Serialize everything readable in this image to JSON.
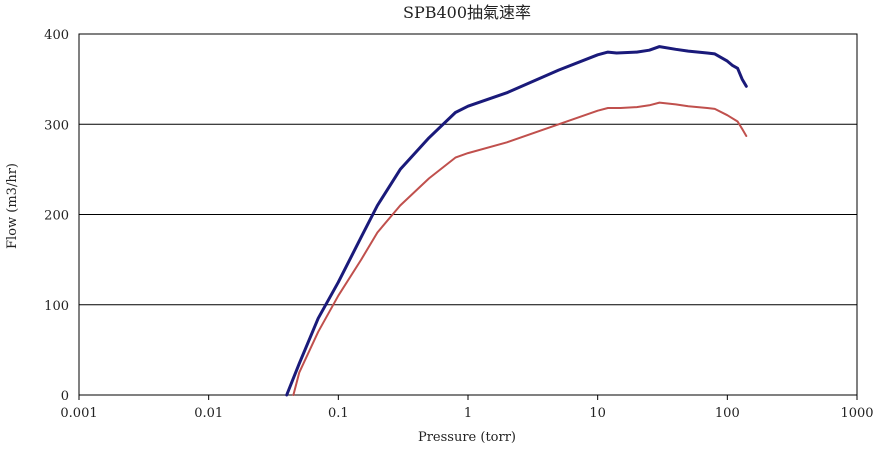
{
  "chart_data": {
    "type": "line",
    "title": "SPB400抽氣速率",
    "xlabel": "Pressure  (torr)",
    "ylabel": "Flow  (m3/hr)",
    "x_scale": "log",
    "xlim": [
      0.001,
      1000
    ],
    "ylim": [
      0,
      400
    ],
    "x_ticks": [
      0.001,
      0.01,
      0.1,
      1,
      10,
      100,
      1000
    ],
    "x_tick_labels": [
      "0.001",
      "0.01",
      "0.1",
      "1",
      "10",
      "100",
      "1000"
    ],
    "y_ticks": [
      0,
      100,
      200,
      300,
      400
    ],
    "y_tick_labels": [
      "0",
      "100",
      "200",
      "300",
      "400"
    ],
    "grid": "horizontal",
    "legend": "none",
    "series": [
      {
        "color": "#1a1a7a",
        "x": [
          0.04,
          0.05,
          0.07,
          0.1,
          0.15,
          0.2,
          0.3,
          0.5,
          0.8,
          1,
          2,
          5,
          10,
          12,
          14,
          20,
          25,
          30,
          40,
          50,
          70,
          80,
          100,
          110,
          120,
          130,
          140
        ],
        "y": [
          0,
          35,
          85,
          125,
          175,
          210,
          250,
          285,
          313,
          320,
          335,
          360,
          377,
          380,
          379,
          380,
          382,
          386,
          383,
          381,
          379,
          378,
          370,
          365,
          362,
          350,
          342
        ]
      },
      {
        "color": "#c0504d",
        "x": [
          0.045,
          0.05,
          0.07,
          0.1,
          0.15,
          0.2,
          0.3,
          0.5,
          0.8,
          1,
          2,
          5,
          10,
          12,
          15,
          20,
          25,
          30,
          40,
          50,
          70,
          80,
          100,
          120,
          130,
          140
        ],
        "y": [
          0,
          25,
          70,
          110,
          150,
          180,
          210,
          240,
          263,
          268,
          280,
          300,
          315,
          318,
          318,
          319,
          321,
          324,
          322,
          320,
          318,
          317,
          310,
          303,
          295,
          287
        ]
      }
    ]
  }
}
